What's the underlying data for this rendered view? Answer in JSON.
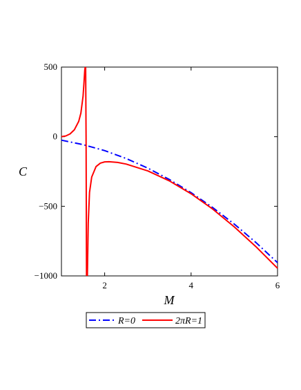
{
  "chart_data": {
    "type": "line",
    "xlabel": "M",
    "ylabel": "C",
    "xlim": [
      1,
      6
    ],
    "ylim": [
      -1000,
      500
    ],
    "x_ticks": [
      2,
      4,
      6
    ],
    "y_ticks": [
      500,
      0,
      -500,
      -1000
    ],
    "x_tick_labels": [
      "2",
      "4",
      "6"
    ],
    "y_tick_labels": [
      "500",
      "0",
      "−500",
      "−1000"
    ],
    "grid": false,
    "legend_position": "bottom",
    "series": [
      {
        "name": "R=0",
        "color": "#0000ff",
        "style": "dash-dot",
        "x": [
          1.0,
          1.5,
          2.0,
          2.5,
          3.0,
          3.5,
          4.0,
          4.5,
          5.0,
          5.5,
          6.0
        ],
        "y": [
          -25,
          -57,
          -100,
          -157,
          -226,
          -308,
          -402,
          -509,
          -628,
          -760,
          -905
        ]
      },
      {
        "name": "2πR=1",
        "color": "#ff0000",
        "style": "solid",
        "segments": [
          {
            "x": [
              1.0,
              1.1,
              1.2,
              1.3,
              1.4,
              1.45,
              1.5,
              1.52,
              1.54,
              1.55
            ],
            "y": [
              0,
              5,
              20,
              50,
              110,
              170,
              290,
              380,
              480,
              500
            ]
          },
          {
            "x": [
              1.56,
              1.57,
              1.58
            ],
            "y": [
              500,
              0,
              -1000
            ]
          },
          {
            "x": [
              1.6,
              1.62,
              1.65,
              1.7,
              1.8,
              1.9,
              2.0,
              2.1,
              2.3,
              2.5,
              3.0,
              3.5,
              4.0,
              4.5,
              5.0,
              5.5,
              6.0
            ],
            "y": [
              -1000,
              -620,
              -400,
              -290,
              -215,
              -190,
              -181,
              -180,
              -185,
              -197,
              -246,
              -318,
              -410,
              -520,
              -648,
              -790,
              -945
            ]
          }
        ]
      }
    ]
  }
}
